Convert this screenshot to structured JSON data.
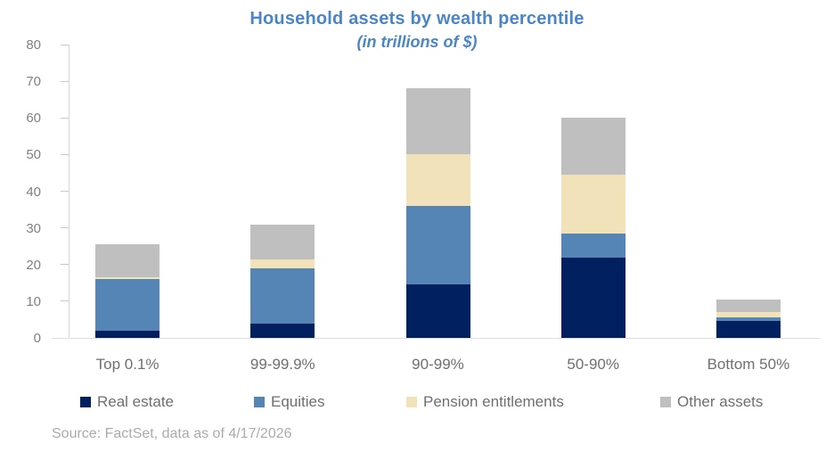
{
  "header": {
    "title": "Household assets by wealth percentile",
    "subtitle": "(in trillions of $)"
  },
  "colors": {
    "title_text": "#4a86c7",
    "real_estate": "#002060",
    "equities": "#5585b5",
    "pension_entitlements": "#f2e2ba",
    "other_assets": "#bfbfbf",
    "axis_text": "#808080",
    "category_text": "#6f6f6f",
    "source_text": "#ababab"
  },
  "chart_data": {
    "type": "bar",
    "stacked": true,
    "title": "Household assets by wealth percentile",
    "subtitle": "(in trillions of $)",
    "xlabel": "",
    "ylabel": "",
    "categories": [
      "Top 0.1%",
      "99-99.9%",
      "90-99%",
      "50-90%",
      "Bottom 50%"
    ],
    "series": [
      {
        "name": "Real estate",
        "color": "#002060",
        "values": [
          2,
          4,
          14.5,
          22,
          4.5
        ]
      },
      {
        "name": "Equities",
        "color": "#5585b5",
        "values": [
          14,
          15,
          21.5,
          6.5,
          1
        ]
      },
      {
        "name": "Pension entitlements",
        "color": "#f2e2ba",
        "values": [
          0.5,
          2.5,
          14,
          16,
          1.5
        ]
      },
      {
        "name": "Other assets",
        "color": "#bfbfbf",
        "values": [
          9,
          9.5,
          18,
          15.5,
          3.5
        ]
      }
    ],
    "stack_totals": [
      25.5,
      31,
      68,
      60,
      10.5
    ],
    "ylim": [
      0,
      80
    ],
    "yticks": [
      0,
      10,
      20,
      30,
      40,
      50,
      60,
      70,
      80
    ],
    "grid": false,
    "legend_position": "bottom"
  },
  "source": {
    "note": "Source: FactSet, data as of 4/17/2026"
  }
}
